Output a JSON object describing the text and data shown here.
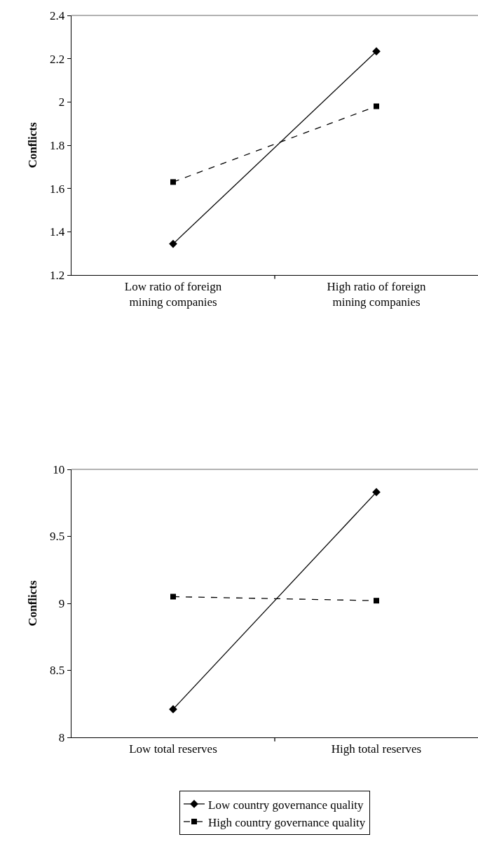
{
  "chart_data": [
    {
      "type": "line",
      "ylabel": "Conflicts",
      "categories": [
        "Low ratio of foreign mining companies",
        "High ratio of foreign mining companies"
      ],
      "ylim": [
        1.2,
        2.4
      ],
      "yticks": [
        1.2,
        1.4,
        1.6,
        1.8,
        2,
        2.2,
        2.4
      ],
      "grid": false,
      "legend": false,
      "series": [
        {
          "color": "#000000",
          "marker": "diamond",
          "line_style": "solid",
          "values": [
            1.344,
            2.234
          ]
        },
        {
          "color": "#000000",
          "marker": "square",
          "line_style": "dashed",
          "values": [
            1.63,
            1.98
          ]
        }
      ]
    },
    {
      "type": "line",
      "ylabel": "Conflicts",
      "categories": [
        "Low total reserves",
        "High total reserves"
      ],
      "ylim": [
        8,
        10
      ],
      "yticks": [
        8,
        8.5,
        9,
        9.5,
        10
      ],
      "grid": false,
      "legend": "bottom",
      "series": [
        {
          "name": "Low country governance quality",
          "color": "#000000",
          "marker": "diamond",
          "line_style": "solid",
          "values": [
            8.21,
            9.83
          ]
        },
        {
          "name": "High country governance quality",
          "color": "#000000",
          "marker": "square",
          "line_style": "dashed",
          "values": [
            9.05,
            9.02
          ]
        }
      ]
    }
  ]
}
